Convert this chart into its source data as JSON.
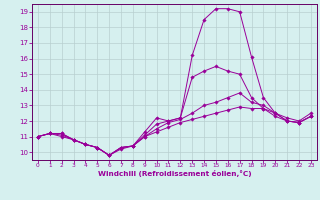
{
  "title": "",
  "xlabel": "Windchill (Refroidissement éolien,°C)",
  "bg_color": "#d6f0ef",
  "grid_color": "#b8d0d0",
  "line_color": "#990099",
  "spine_color": "#660066",
  "xlim": [
    -0.5,
    23.5
  ],
  "ylim": [
    9.5,
    19.5
  ],
  "xticks": [
    0,
    1,
    2,
    3,
    4,
    5,
    6,
    7,
    8,
    9,
    10,
    11,
    12,
    13,
    14,
    15,
    16,
    17,
    18,
    19,
    20,
    21,
    22,
    23
  ],
  "yticks": [
    10,
    11,
    12,
    13,
    14,
    15,
    16,
    17,
    18,
    19
  ],
  "lines": [
    [
      11.0,
      11.2,
      11.2,
      10.8,
      10.5,
      10.3,
      9.8,
      10.3,
      10.4,
      11.3,
      12.2,
      12.0,
      12.2,
      16.2,
      18.5,
      19.2,
      19.2,
      19.0,
      16.1,
      13.5,
      12.5,
      12.2,
      12.0,
      12.5
    ],
    [
      11.0,
      11.2,
      11.2,
      10.8,
      10.5,
      10.3,
      9.8,
      10.3,
      10.4,
      11.1,
      11.8,
      12.0,
      12.2,
      14.8,
      15.2,
      15.5,
      15.2,
      15.0,
      13.5,
      12.8,
      12.3,
      12.0,
      11.9,
      12.3
    ],
    [
      11.0,
      11.2,
      11.1,
      10.8,
      10.5,
      10.3,
      9.8,
      10.3,
      10.4,
      11.0,
      11.5,
      11.9,
      12.1,
      12.5,
      13.0,
      13.2,
      13.5,
      13.8,
      13.2,
      13.0,
      12.5,
      12.0,
      11.9,
      12.3
    ],
    [
      11.0,
      11.2,
      11.0,
      10.8,
      10.5,
      10.3,
      9.8,
      10.2,
      10.4,
      11.0,
      11.3,
      11.6,
      11.9,
      12.1,
      12.3,
      12.5,
      12.7,
      12.9,
      12.8,
      12.8,
      12.5,
      12.0,
      11.9,
      12.3
    ]
  ]
}
